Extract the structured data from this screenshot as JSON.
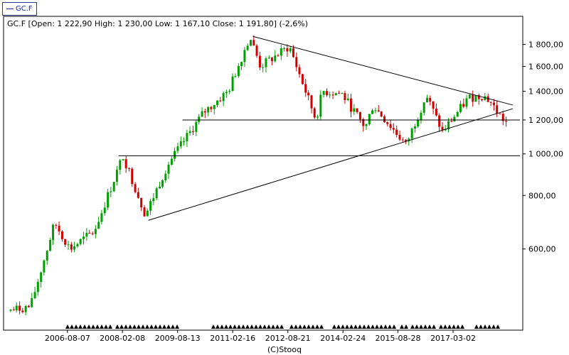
{
  "ticker_tag": "GC.F",
  "header_text": "GC.F [Open: 1 222,90  High: 1 230,00  Low: 1 167,10  Close: 1 191,80] (-2,6%)",
  "footer_credit": "(C)Stooq",
  "colors": {
    "up": "#00a000",
    "down": "#d00000",
    "line": "#000000",
    "frame": "#000000",
    "grid": "#d8d8d8",
    "signal": "#000000"
  },
  "chart_data": {
    "type": "candlestick",
    "scale": "log",
    "ylim": [
      400,
      2000
    ],
    "y_ticks": [
      {
        "value": 600,
        "label": "600,00"
      },
      {
        "value": 800,
        "label": "800,00"
      },
      {
        "value": 1000,
        "label": "1 000,00"
      },
      {
        "value": 1200,
        "label": "1 200,00"
      },
      {
        "value": 1400,
        "label": "1 400,00"
      },
      {
        "value": 1600,
        "label": "1 600,00"
      },
      {
        "value": 1800,
        "label": "1 800,00"
      }
    ],
    "x_range": [
      "2005-01-01",
      "2018-12-31"
    ],
    "x_ticks": [
      "2006-08-07",
      "2008-02-08",
      "2009-08-13",
      "2011-02-16",
      "2012-08-21",
      "2014-02-24",
      "2015-08-28",
      "2017-03-02"
    ],
    "last_bar": {
      "open": 1222.9,
      "high": 1230.0,
      "low": 1167.1,
      "close": 1191.8,
      "change": "-2,6%"
    },
    "key_points": [
      {
        "date": "2005-01-01",
        "value": 430
      },
      {
        "date": "2005-09-01",
        "value": 440
      },
      {
        "date": "2006-05-01",
        "value": 690
      },
      {
        "date": "2006-10-01",
        "value": 600
      },
      {
        "date": "2007-06-01",
        "value": 660
      },
      {
        "date": "2008-03-15",
        "value": 990
      },
      {
        "date": "2008-10-25",
        "value": 720
      },
      {
        "date": "2009-06-01",
        "value": 940
      },
      {
        "date": "2010-06-01",
        "value": 1250
      },
      {
        "date": "2011-02-01",
        "value": 1400
      },
      {
        "date": "2011-09-05",
        "value": 1880
      },
      {
        "date": "2011-12-20",
        "value": 1600
      },
      {
        "date": "2012-10-05",
        "value": 1780
      },
      {
        "date": "2013-06-28",
        "value": 1200
      },
      {
        "date": "2013-09-01",
        "value": 1400
      },
      {
        "date": "2014-03-15",
        "value": 1380
      },
      {
        "date": "2014-11-05",
        "value": 1150
      },
      {
        "date": "2015-01-20",
        "value": 1300
      },
      {
        "date": "2015-12-17",
        "value": 1050
      },
      {
        "date": "2016-07-06",
        "value": 1370
      },
      {
        "date": "2016-12-15",
        "value": 1125
      },
      {
        "date": "2017-09-01",
        "value": 1350
      },
      {
        "date": "2018-01-25",
        "value": 1370
      },
      {
        "date": "2018-04-01",
        "value": 1330
      },
      {
        "date": "2018-06-30",
        "value": 1240
      },
      {
        "date": "2018-09-01",
        "value": 1190
      }
    ],
    "trendlines": [
      {
        "from": {
          "date": "2011-09-05",
          "value": 1880
        },
        "to": {
          "date": "2018-10-20",
          "value": 1300
        }
      },
      {
        "from": {
          "date": "2008-10-25",
          "value": 700
        },
        "to": {
          "date": "2018-10-20",
          "value": 1275
        }
      },
      {
        "from": {
          "date": "2009-10-01",
          "value": 1200
        },
        "to": {
          "date": "2018-12-31",
          "value": 1200
        }
      },
      {
        "from": {
          "date": "2008-01-01",
          "value": 990
        },
        "to": {
          "date": "2018-12-31",
          "value": 990
        }
      }
    ]
  }
}
